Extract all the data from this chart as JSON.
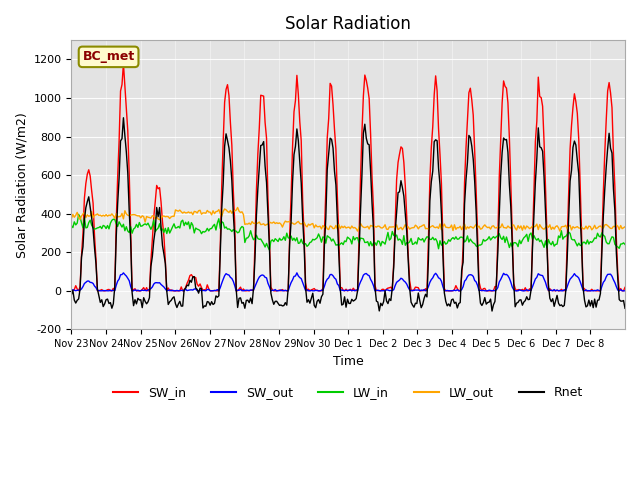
{
  "title": "Solar Radiation",
  "ylabel": "Solar Radiation (W/m2)",
  "xlabel": "Time",
  "station_label": "BC_met",
  "ylim": [
    -200,
    1300
  ],
  "yticks": [
    -200,
    0,
    200,
    400,
    600,
    800,
    1000,
    1200
  ],
  "x_tick_labels": [
    "Nov 23",
    "Nov 24",
    "Nov 25",
    "Nov 26",
    "Nov 27",
    "Nov 28",
    "Nov 29",
    "Nov 30",
    "Dec 1",
    "Dec 2",
    "Dec 3",
    "Dec 4",
    "Dec 5",
    "Dec 6",
    "Dec 7",
    "Dec 8"
  ],
  "n_days": 16,
  "sw_peaks": [
    640,
    1150,
    550,
    80,
    1060,
    1040,
    1050,
    1030,
    1130,
    760,
    1040,
    1050,
    1100,
    1060,
    1040,
    1030
  ],
  "colors": {
    "SW_in": "#FF0000",
    "SW_out": "#0000FF",
    "LW_in": "#00CC00",
    "LW_out": "#FFA500",
    "Rnet": "#000000"
  },
  "legend_entries": [
    "SW_in",
    "SW_out",
    "LW_in",
    "LW_out",
    "Rnet"
  ]
}
